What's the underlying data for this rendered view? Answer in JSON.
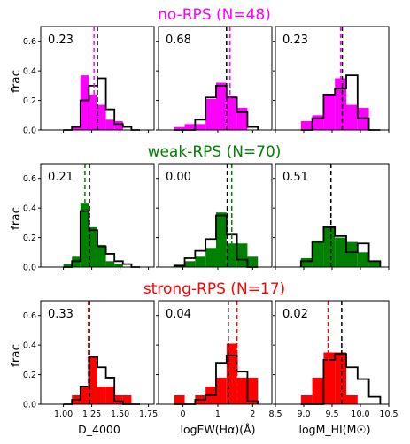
{
  "chart_data": {
    "type": "histogram-grid",
    "y_axis": {
      "label": "frac",
      "lim": [
        0,
        0.7
      ],
      "ticks": [
        "0.0",
        "0.2",
        "0.4",
        "0.6"
      ]
    },
    "columns": [
      {
        "xlabel": "D_4000",
        "xlim": [
          0.8,
          1.8
        ],
        "tick_values": [
          1.0,
          1.25,
          1.5,
          1.75
        ],
        "tick_labels": [
          "1.00",
          "1.25",
          "1.50",
          "1.75"
        ],
        "bin_edges": [
          1.0,
          1.075,
          1.15,
          1.225,
          1.3,
          1.375,
          1.45,
          1.525,
          1.6,
          1.675
        ]
      },
      {
        "xlabel": "logEW(Hα)(Å)",
        "xlim": [
          -0.7,
          2.55
        ],
        "tick_values": [
          0,
          1,
          2
        ],
        "tick_labels": [
          "0",
          "1",
          "2"
        ],
        "bin_edges": [
          -0.25,
          0.05,
          0.35,
          0.65,
          0.95,
          1.25,
          1.55,
          1.85,
          2.15
        ]
      },
      {
        "xlabel": "logM_HI(M☉)",
        "xlim": [
          8.5,
          10.5
        ],
        "tick_values": [
          8.5,
          9.0,
          9.5,
          10.0,
          10.5
        ],
        "tick_labels": [
          "8.5",
          "9.0",
          "9.5",
          "10.0",
          "10.5"
        ],
        "bin_edges": [
          8.95,
          9.15,
          9.35,
          9.55,
          9.75,
          9.95,
          10.15,
          10.35
        ]
      }
    ],
    "rows": [
      {
        "title": "no-RPS (N=48)",
        "color": "#ff00ff",
        "panels": [
          {
            "pval": "0.23",
            "filled": [
              0,
              0.02,
              0.37,
              0.24,
              0.17,
              0.07,
              0.06,
              0,
              0
            ],
            "outline": [
              0,
              0.02,
              0.2,
              0.3,
              0.35,
              0.14,
              0.04,
              0.02,
              0
            ],
            "median_filled": 1.27,
            "median_outline": 1.3
          },
          {
            "pval": "0.68",
            "filled": [
              0.02,
              0.04,
              0.04,
              0.21,
              0.32,
              0.23,
              0.15,
              0
            ],
            "outline": [
              0,
              0,
              0.07,
              0.22,
              0.3,
              0.22,
              0.12,
              0.02
            ],
            "median_filled": 1.35,
            "median_outline": 1.25
          },
          {
            "pval": "0.23",
            "filled": [
              0.06,
              0.1,
              0.24,
              0.35,
              0.17,
              0.15,
              0
            ],
            "outline": [
              0,
              0.08,
              0.24,
              0.28,
              0.37,
              0.08,
              0
            ],
            "median_filled": 9.65,
            "median_outline": 9.68
          }
        ]
      },
      {
        "title": "weak-RPS (N=70)",
        "color": "#008000",
        "panels": [
          {
            "pval": "0.21",
            "filled": [
              0.02,
              0.07,
              0.43,
              0.27,
              0.15,
              0.04,
              0.02,
              0,
              0
            ],
            "outline": [
              0,
              0.04,
              0.38,
              0.25,
              0.14,
              0.09,
              0.04,
              0.02,
              0
            ],
            "median_filled": 1.19,
            "median_outline": 1.23
          },
          {
            "pval": "0.00",
            "filled": [
              0.01,
              0.04,
              0.07,
              0.13,
              0.37,
              0.16,
              0.16,
              0.07
            ],
            "outline": [
              0.01,
              0.06,
              0.11,
              0.19,
              0.35,
              0.22,
              0.05,
              0
            ],
            "median_filled": 1.4,
            "median_outline": 1.27
          },
          {
            "pval": "0.51",
            "filled": [
              0.06,
              0.18,
              0.27,
              0.2,
              0.17,
              0.1,
              0.04
            ],
            "outline": [
              0.04,
              0.17,
              0.27,
              0.21,
              0.1,
              0.16,
              0.04
            ],
            "median_filled": 9.48,
            "median_outline": 9.48
          }
        ]
      },
      {
        "title": "strong-RPS (N=17)",
        "color": "#ff0000",
        "panels": [
          {
            "pval": "0.33",
            "filled": [
              0,
              0.06,
              0.12,
              0.32,
              0.12,
              0.12,
              0.06,
              0.06,
              0
            ],
            "outline": [
              0,
              0.03,
              0.12,
              0.32,
              0.25,
              0.18,
              0.02,
              0,
              0
            ],
            "median_filled": 1.22,
            "median_outline": 1.23
          },
          {
            "pval": "0.04",
            "filled": [
              0.06,
              0,
              0.06,
              0.12,
              0.18,
              0.41,
              0.18,
              0.18
            ],
            "outline": [
              0,
              0,
              0.03,
              0.06,
              0.28,
              0.33,
              0.22,
              0.02
            ],
            "median_filled": 1.55,
            "median_outline": 1.3
          },
          {
            "pval": "0.02",
            "filled": [
              0.06,
              0.18,
              0.35,
              0.35,
              0.06,
              0,
              0
            ],
            "outline": [
              0,
              0,
              0.3,
              0.34,
              0.25,
              0.17,
              0.05
            ],
            "median_filled": 9.43,
            "median_outline": 9.67
          }
        ]
      }
    ]
  }
}
